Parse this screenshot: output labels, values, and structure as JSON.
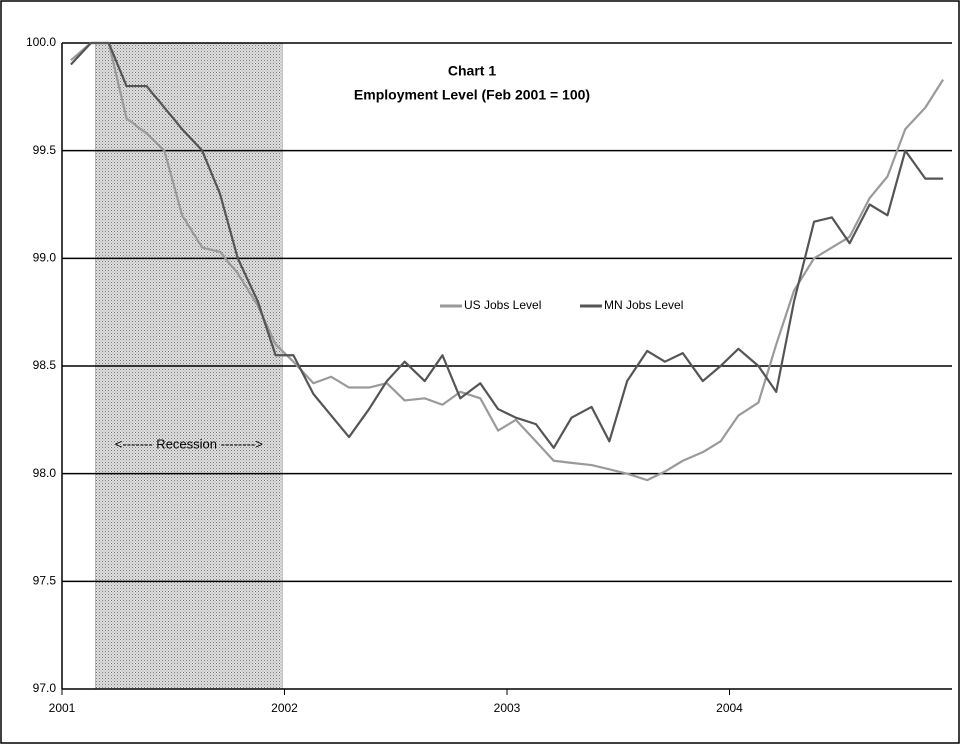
{
  "chart_data": {
    "type": "line",
    "title": "Chart 1",
    "subtitle": "Employment Level (Feb 2001 = 100)",
    "annotation": "<------- Recession -------->",
    "recession": [
      2001.15,
      2001.99
    ],
    "x": [
      2001.04,
      2001.13,
      2001.21,
      2001.29,
      2001.38,
      2001.46,
      2001.54,
      2001.63,
      2001.71,
      2001.79,
      2001.88,
      2001.96,
      2002.04,
      2002.13,
      2002.21,
      2002.29,
      2002.38,
      2002.46,
      2002.54,
      2002.63,
      2002.71,
      2002.79,
      2002.88,
      2002.96,
      2003.04,
      2003.13,
      2003.21,
      2003.29,
      2003.38,
      2003.46,
      2003.54,
      2003.63,
      2003.71,
      2003.79,
      2003.88,
      2003.96,
      2004.04,
      2004.13,
      2004.21,
      2004.29,
      2004.38,
      2004.46,
      2004.54,
      2004.63,
      2004.71,
      2004.79,
      2004.88,
      2004.96
    ],
    "series": [
      {
        "name": "US Jobs Level",
        "color": "#9a9a9a",
        "values": [
          99.92,
          100.0,
          100.0,
          99.65,
          99.58,
          99.5,
          99.2,
          99.05,
          99.03,
          98.93,
          98.78,
          98.6,
          98.52,
          98.42,
          98.45,
          98.4,
          98.4,
          98.42,
          98.34,
          98.35,
          98.32,
          98.38,
          98.35,
          98.2,
          98.25,
          98.15,
          98.06,
          98.05,
          98.04,
          98.02,
          98.0,
          97.97,
          98.01,
          98.06,
          98.1,
          98.15,
          98.27,
          98.33,
          98.6,
          98.85,
          99.0,
          99.05,
          99.1,
          99.28,
          99.38,
          99.6,
          99.7,
          99.83
        ]
      },
      {
        "name": "MN Jobs Level",
        "color": "#555555",
        "values": [
          99.9,
          100.0,
          100.0,
          99.8,
          99.8,
          99.7,
          99.6,
          99.5,
          99.3,
          99.0,
          98.8,
          98.55,
          98.55,
          98.37,
          98.27,
          98.17,
          98.3,
          98.43,
          98.52,
          98.43,
          98.55,
          98.35,
          98.42,
          98.3,
          98.26,
          98.23,
          98.12,
          98.26,
          98.31,
          98.15,
          98.43,
          98.57,
          98.52,
          98.56,
          98.43,
          98.5,
          98.58,
          98.5,
          98.38,
          98.8,
          99.17,
          99.19,
          99.07,
          99.25,
          99.2,
          99.5,
          99.37,
          99.37
        ]
      }
    ],
    "xlim": [
      2001,
      2005
    ],
    "xticks": [
      2001,
      2002,
      2003,
      2004
    ],
    "ylim": [
      97,
      100
    ],
    "yticks": [
      {
        "value": 97,
        "label": "97.0"
      },
      {
        "value": 97.5,
        "label": "97.5"
      },
      {
        "value": 98,
        "label": "98.0"
      },
      {
        "value": 98.5,
        "label": "98.5"
      },
      {
        "value": 99,
        "label": "99.0"
      },
      {
        "value": 99.5,
        "label": "99.5"
      },
      {
        "value": 100,
        "label": "100.0"
      }
    ],
    "grid": true
  }
}
